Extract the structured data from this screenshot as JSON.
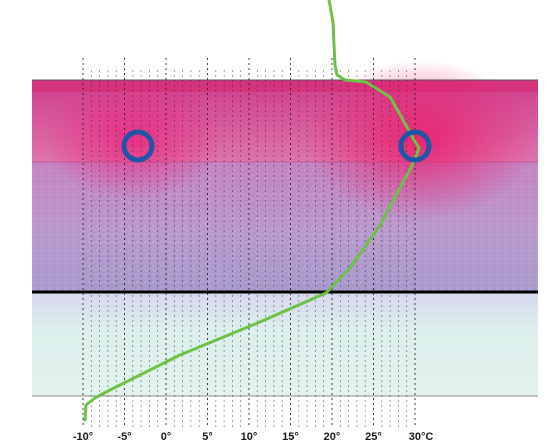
{
  "diagram": {
    "layers": [
      {
        "name": "warm-band",
        "color": "#e01e7f",
        "side_glow": "#e8136f"
      },
      {
        "name": "insulation",
        "color": "#b98fc6"
      },
      {
        "name": "lower-band",
        "color": "#ddf0ed"
      }
    ],
    "colors": {
      "curve": "#6dc246",
      "marker_ring": "#1f56a8",
      "gridline": "#222222",
      "slab_line": "#000000"
    },
    "axis": {
      "ticks": [
        {
          "value": -10,
          "label": "-10°"
        },
        {
          "value": -5,
          "label": "-5°"
        },
        {
          "value": 0,
          "label": "0°"
        },
        {
          "value": 5,
          "label": "5°"
        },
        {
          "value": 10,
          "label": "10°"
        },
        {
          "value": 15,
          "label": "15°"
        },
        {
          "value": 20,
          "label": "20°"
        },
        {
          "value": 25,
          "label": "25°"
        },
        {
          "value": 30,
          "label": "30°C"
        }
      ]
    },
    "markers": [
      {
        "name": "cold-sensor-ring",
        "temperature": -4
      },
      {
        "name": "warm-sensor-ring",
        "temperature": 30
      }
    ]
  }
}
